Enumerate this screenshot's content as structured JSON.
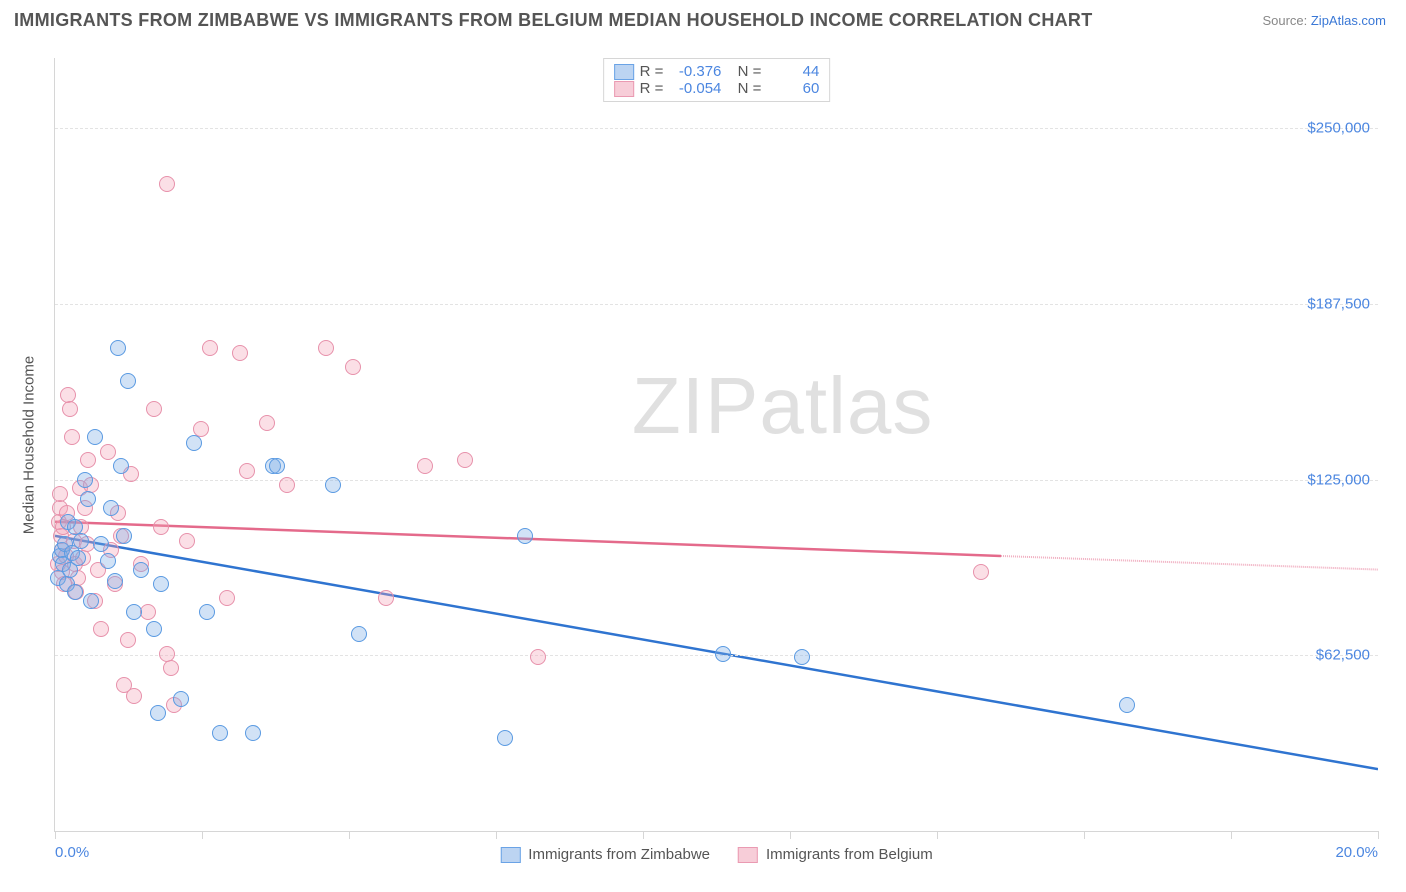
{
  "header": {
    "title": "IMMIGRANTS FROM ZIMBABWE VS IMMIGRANTS FROM BELGIUM MEDIAN HOUSEHOLD INCOME CORRELATION CHART",
    "source_label": "Source: ",
    "source_link": "ZipAtlas.com"
  },
  "watermark": {
    "part1": "ZIP",
    "part2": "atlas"
  },
  "chart": {
    "type": "scatter",
    "background_color": "#ffffff",
    "grid_color": "#e3e3e3",
    "axis_color": "#d6d6d6",
    "text_color": "#555555",
    "accent_color": "#4b86e0",
    "xlim": [
      0,
      20
    ],
    "ylim": [
      0,
      275000
    ],
    "xlabel_start": "0.0%",
    "xlabel_end": "20.0%",
    "xticks": [
      0,
      2.22,
      4.44,
      6.67,
      8.89,
      11.11,
      13.33,
      15.56,
      17.78,
      20
    ],
    "ylabel": "Median Household Income",
    "ygrid": [
      {
        "value": 62500,
        "label": "$62,500"
      },
      {
        "value": 125000,
        "label": "$125,000"
      },
      {
        "value": 187500,
        "label": "$187,500"
      },
      {
        "value": 250000,
        "label": "$250,000"
      }
    ],
    "marker_radius": 8,
    "marker_border_width": 1.5,
    "series": [
      {
        "id": "zimbabwe",
        "label": "Immigrants from Zimbabwe",
        "fill": "rgba(122,171,230,0.35)",
        "stroke": "#5a9ae2",
        "swatch_fill": "#bcd4f2",
        "swatch_stroke": "#6aa3e6",
        "trend_color": "#2f74d0",
        "trend": {
          "x1": 0,
          "y1": 105000,
          "x2": 20,
          "y2": 22000,
          "solid_until": 20
        },
        "R": "-0.376",
        "N": "44",
        "points": [
          [
            0.05,
            90000
          ],
          [
            0.08,
            98000
          ],
          [
            0.1,
            100000
          ],
          [
            0.12,
            95000
          ],
          [
            0.15,
            102000
          ],
          [
            0.18,
            88000
          ],
          [
            0.2,
            110000
          ],
          [
            0.22,
            93000
          ],
          [
            0.25,
            99000
          ],
          [
            0.3,
            85000
          ],
          [
            0.35,
            97000
          ],
          [
            0.4,
            103000
          ],
          [
            0.3,
            108000
          ],
          [
            0.45,
            125000
          ],
          [
            0.5,
            118000
          ],
          [
            0.55,
            82000
          ],
          [
            0.6,
            140000
          ],
          [
            0.7,
            102000
          ],
          [
            0.8,
            96000
          ],
          [
            0.85,
            115000
          ],
          [
            0.9,
            89000
          ],
          [
            1.0,
            130000
          ],
          [
            1.05,
            105000
          ],
          [
            1.1,
            160000
          ],
          [
            0.95,
            172000
          ],
          [
            1.2,
            78000
          ],
          [
            1.3,
            93000
          ],
          [
            1.5,
            72000
          ],
          [
            1.55,
            42000
          ],
          [
            1.6,
            88000
          ],
          [
            1.9,
            47000
          ],
          [
            2.1,
            138000
          ],
          [
            2.3,
            78000
          ],
          [
            2.5,
            35000
          ],
          [
            3.0,
            35000
          ],
          [
            3.3,
            130000
          ],
          [
            3.35,
            130000
          ],
          [
            4.2,
            123000
          ],
          [
            4.6,
            70000
          ],
          [
            6.8,
            33000
          ],
          [
            7.1,
            105000
          ],
          [
            10.1,
            63000
          ],
          [
            11.3,
            62000
          ],
          [
            16.2,
            45000
          ]
        ]
      },
      {
        "id": "belgium",
        "label": "Immigrants from Belgium",
        "fill": "rgba(244,164,184,0.35)",
        "stroke": "#e791ab",
        "swatch_fill": "#f7cdd8",
        "swatch_stroke": "#ea9ab2",
        "trend_color": "#e46a8b",
        "trend": {
          "x1": 0,
          "y1": 110000,
          "x2": 20,
          "y2": 93000,
          "solid_until": 14.3
        },
        "R": "-0.054",
        "N": "60",
        "points": [
          [
            0.05,
            95000
          ],
          [
            0.06,
            110000
          ],
          [
            0.07,
            115000
          ],
          [
            0.08,
            120000
          ],
          [
            0.09,
            105000
          ],
          [
            0.1,
            92000
          ],
          [
            0.11,
            100000
          ],
          [
            0.12,
            108000
          ],
          [
            0.14,
            88000
          ],
          [
            0.16,
            98000
          ],
          [
            0.18,
            113000
          ],
          [
            0.2,
            155000
          ],
          [
            0.22,
            150000
          ],
          [
            0.25,
            140000
          ],
          [
            0.28,
            103000
          ],
          [
            0.3,
            95000
          ],
          [
            0.32,
            85000
          ],
          [
            0.35,
            90000
          ],
          [
            0.38,
            122000
          ],
          [
            0.4,
            108000
          ],
          [
            0.42,
            97000
          ],
          [
            0.45,
            115000
          ],
          [
            0.48,
            102000
          ],
          [
            0.5,
            132000
          ],
          [
            0.55,
            123000
          ],
          [
            0.6,
            82000
          ],
          [
            0.65,
            93000
          ],
          [
            0.7,
            72000
          ],
          [
            0.8,
            135000
          ],
          [
            0.85,
            100000
          ],
          [
            0.9,
            88000
          ],
          [
            0.95,
            113000
          ],
          [
            1.0,
            105000
          ],
          [
            1.05,
            52000
          ],
          [
            1.1,
            68000
          ],
          [
            1.15,
            127000
          ],
          [
            1.2,
            48000
          ],
          [
            1.3,
            95000
          ],
          [
            1.4,
            78000
          ],
          [
            1.5,
            150000
          ],
          [
            1.6,
            108000
          ],
          [
            1.7,
            63000
          ],
          [
            1.75,
            58000
          ],
          [
            1.8,
            45000
          ],
          [
            1.7,
            230000
          ],
          [
            2.0,
            103000
          ],
          [
            2.2,
            143000
          ],
          [
            2.35,
            172000
          ],
          [
            2.6,
            83000
          ],
          [
            2.8,
            170000
          ],
          [
            2.9,
            128000
          ],
          [
            3.2,
            145000
          ],
          [
            3.5,
            123000
          ],
          [
            4.1,
            172000
          ],
          [
            4.5,
            165000
          ],
          [
            5.0,
            83000
          ],
          [
            5.6,
            130000
          ],
          [
            6.2,
            132000
          ],
          [
            7.3,
            62000
          ],
          [
            14.0,
            92000
          ]
        ]
      }
    ],
    "legend_top": {
      "R_label": "R =",
      "N_label": "N ="
    }
  }
}
